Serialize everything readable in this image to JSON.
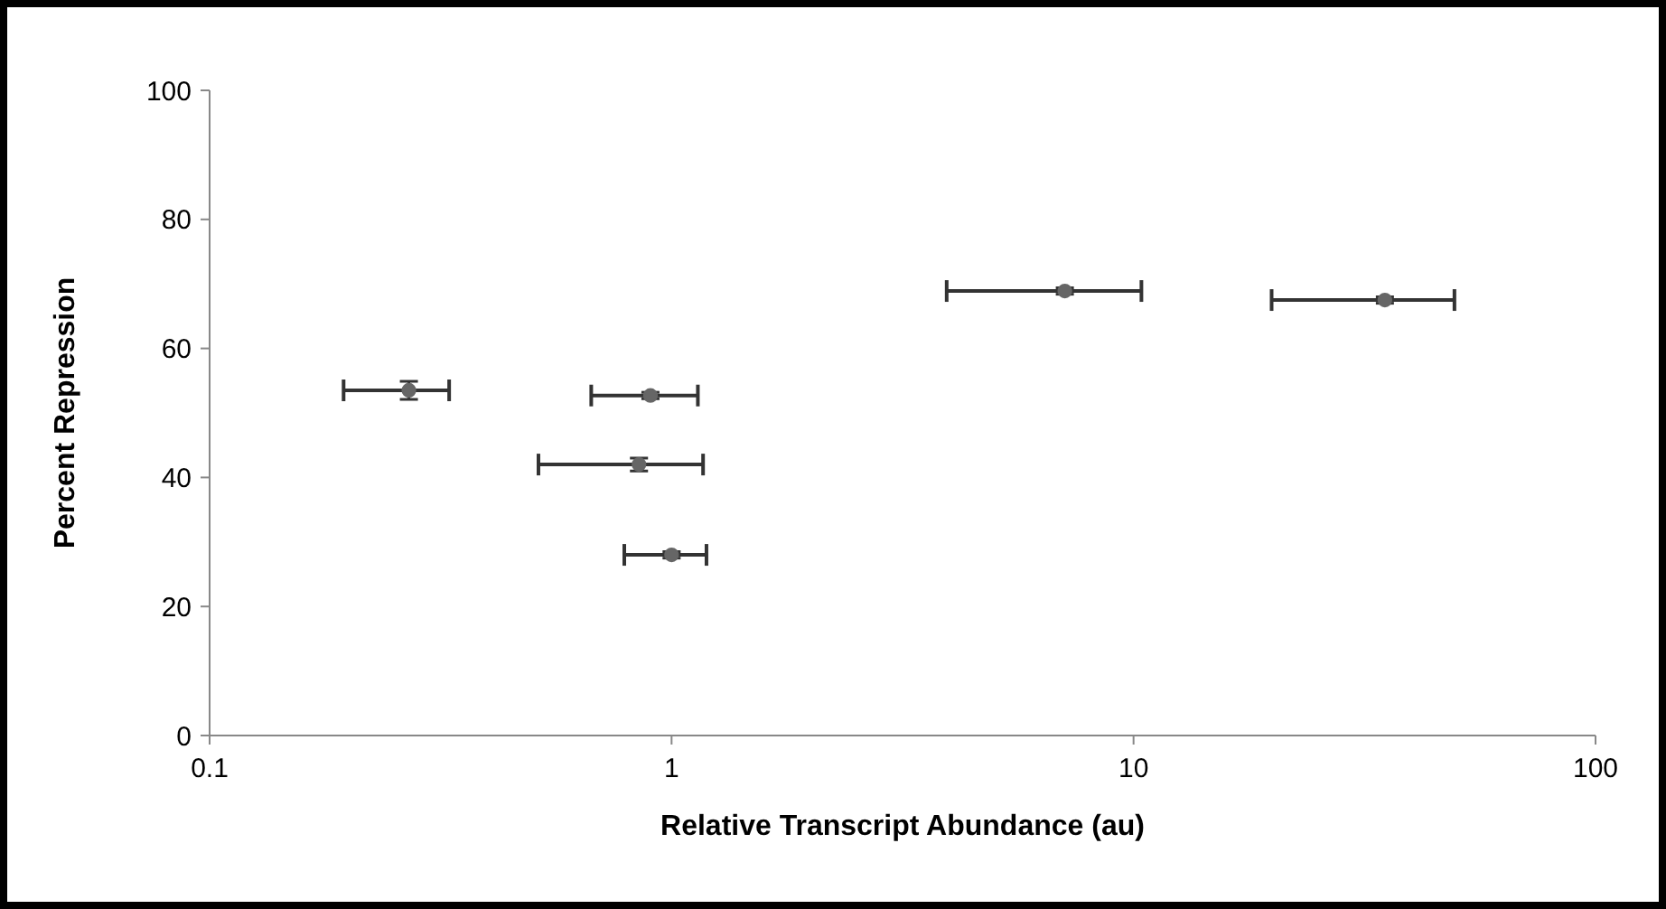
{
  "chart_data": {
    "type": "scatter",
    "xlabel": "Relative Transcript Abundance (au)",
    "ylabel": "Percent Repression",
    "log": "x",
    "xlim": [
      0.1,
      100
    ],
    "xticks": [
      0.1,
      1,
      10,
      100
    ],
    "ylim": [
      0,
      100
    ],
    "yticks": [
      0,
      20,
      40,
      60,
      80,
      100
    ],
    "marker": "circle",
    "series": [
      {
        "color": "#666666",
        "x": [
          0.27,
          0.9,
          0.85,
          1.0,
          7.1,
          35
        ],
        "values": [
          53.5,
          52.7,
          42,
          28,
          68.9,
          67.5
        ],
        "xerrors": [
          [
            0.195,
            0.33
          ],
          [
            0.67,
            1.14
          ],
          [
            0.515,
            1.17
          ],
          [
            0.79,
            1.19
          ],
          [
            3.94,
            10.4
          ],
          [
            19.9,
            49.5
          ]
        ],
        "errors": [
          1.4,
          0.5,
          1,
          0.5,
          0.5,
          0.5
        ]
      }
    ]
  }
}
